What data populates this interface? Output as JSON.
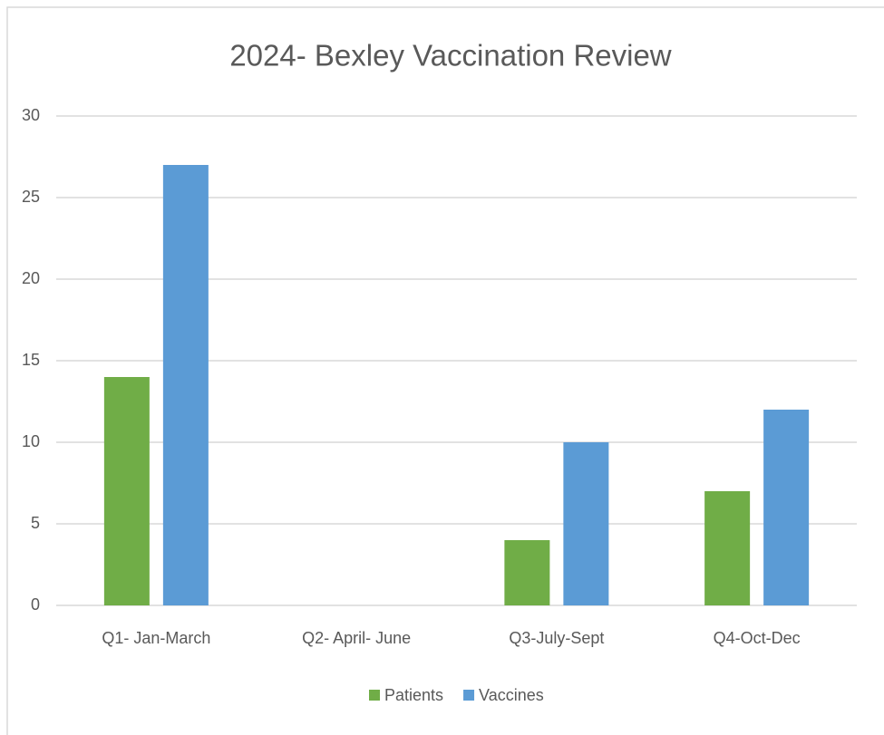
{
  "chart_data": {
    "type": "bar",
    "title": "2024- Bexley Vaccination Review",
    "categories": [
      "Q1- Jan-March",
      "Q2- April- June",
      "Q3-July-Sept",
      "Q4-Oct-Dec"
    ],
    "series": [
      {
        "name": "Patients",
        "color": "#70ad47",
        "values": [
          14,
          0,
          4,
          7
        ]
      },
      {
        "name": "Vaccines",
        "color": "#5b9bd5",
        "values": [
          27,
          0,
          10,
          12
        ]
      }
    ],
    "ylim": [
      0,
      30
    ],
    "yticks": [
      0,
      5,
      10,
      15,
      20,
      25,
      30
    ],
    "grid": true,
    "legend": "bottom"
  }
}
